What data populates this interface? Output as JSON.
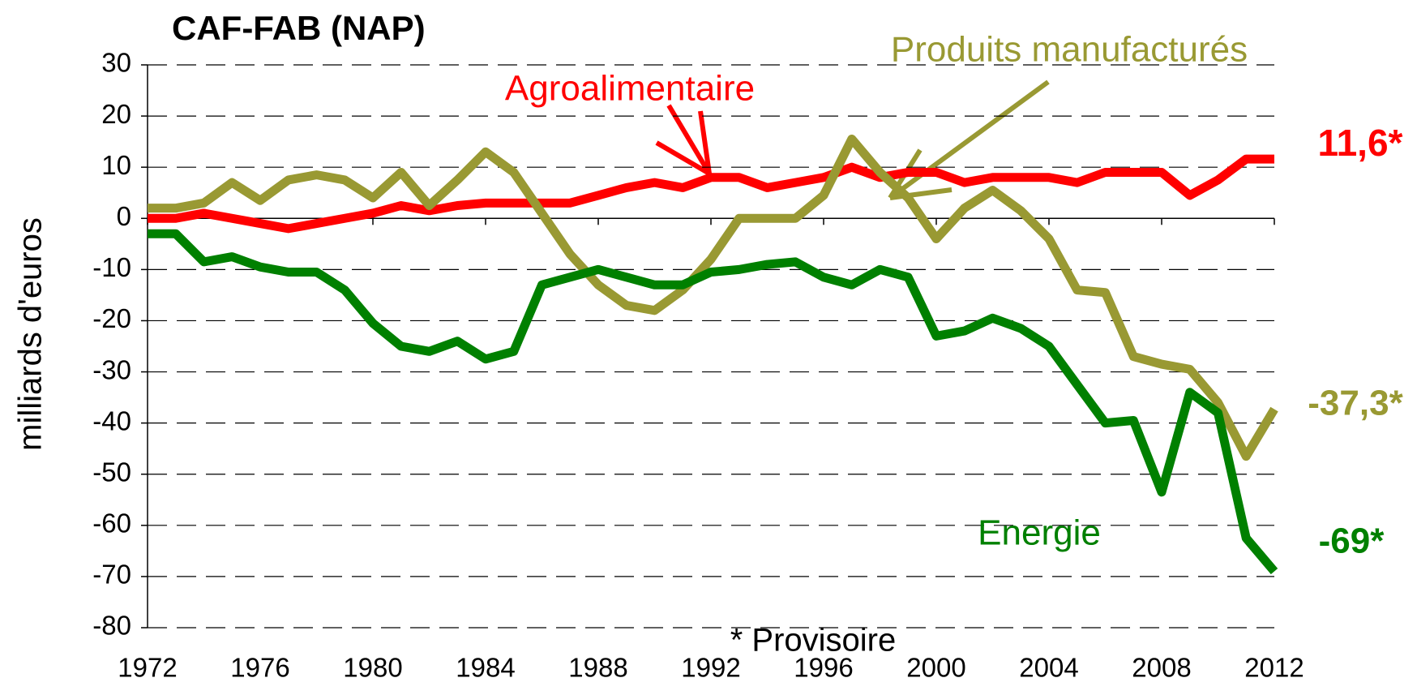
{
  "chart_data": {
    "type": "line",
    "title": "CAF-FAB (NAP)",
    "y_label": "milliards d'euros",
    "x": [
      1972,
      1973,
      1974,
      1975,
      1976,
      1977,
      1978,
      1979,
      1980,
      1981,
      1982,
      1983,
      1984,
      1985,
      1986,
      1987,
      1988,
      1989,
      1990,
      1991,
      1992,
      1993,
      1994,
      1995,
      1996,
      1997,
      1998,
      1999,
      2000,
      2001,
      2002,
      2003,
      2004,
      2005,
      2006,
      2007,
      2008,
      2009,
      2010,
      2011,
      2012
    ],
    "series": [
      {
        "name": "Agroalimentaire",
        "color": "#ff0000",
        "values": [
          0,
          0,
          1,
          0,
          -1,
          -2,
          -1,
          0,
          1,
          2.5,
          1.5,
          2.5,
          3,
          3,
          3,
          3,
          4.5,
          6,
          7,
          6,
          8,
          8,
          6,
          7,
          8,
          10,
          8,
          9,
          9,
          7,
          8,
          8,
          8,
          7,
          9,
          9,
          9,
          4.5,
          7.5,
          11.6,
          11.6
        ]
      },
      {
        "name": "Produits manufacturés",
        "color": "#999933",
        "values": [
          2,
          2,
          3,
          7,
          3.5,
          7.5,
          8.5,
          7.5,
          4,
          9,
          2.5,
          7.5,
          13,
          9,
          1,
          -7,
          -13,
          -17,
          -18,
          -14,
          -8,
          0,
          0,
          0,
          4.5,
          15.5,
          9,
          4,
          -4,
          2,
          5.5,
          1.5,
          -4,
          -14,
          -14.5,
          -27,
          -28.5,
          -29.5,
          -36,
          -46.5,
          -37.3
        ]
      },
      {
        "name": "Energie",
        "color": "#008000",
        "values": [
          -3,
          -3,
          -8.5,
          -7.5,
          -9.5,
          -10.5,
          -10.5,
          -14,
          -20.5,
          -25,
          -26,
          -24,
          -27.5,
          -26,
          -13,
          -11.5,
          -10,
          -11.5,
          -13,
          -13,
          -10.5,
          -10,
          -9,
          -8.5,
          -11.5,
          -13,
          -10,
          -11.5,
          -23,
          -22,
          -19.5,
          -21.5,
          -25,
          -32.5,
          -40,
          -39.5,
          -53.5,
          -34,
          -38,
          -62.5,
          -69
        ]
      }
    ],
    "annotations": [
      {
        "text": "11,6*",
        "color": "#ff0000"
      },
      {
        "text": "-37,3*",
        "color": "#999933"
      },
      {
        "text": "-69*",
        "color": "#008000"
      },
      {
        "text": "* Provisoire",
        "color": "#000000"
      }
    ],
    "xlim": [
      1972,
      2012
    ],
    "xticks": [
      1972,
      1976,
      1980,
      1984,
      1988,
      1992,
      1996,
      2000,
      2004,
      2008,
      2012
    ],
    "ylim": [
      -80,
      30
    ],
    "yticks": [
      -80,
      -70,
      -60,
      -50,
      -40,
      -30,
      -20,
      -10,
      0,
      10,
      20,
      30
    ],
    "grid": true
  }
}
